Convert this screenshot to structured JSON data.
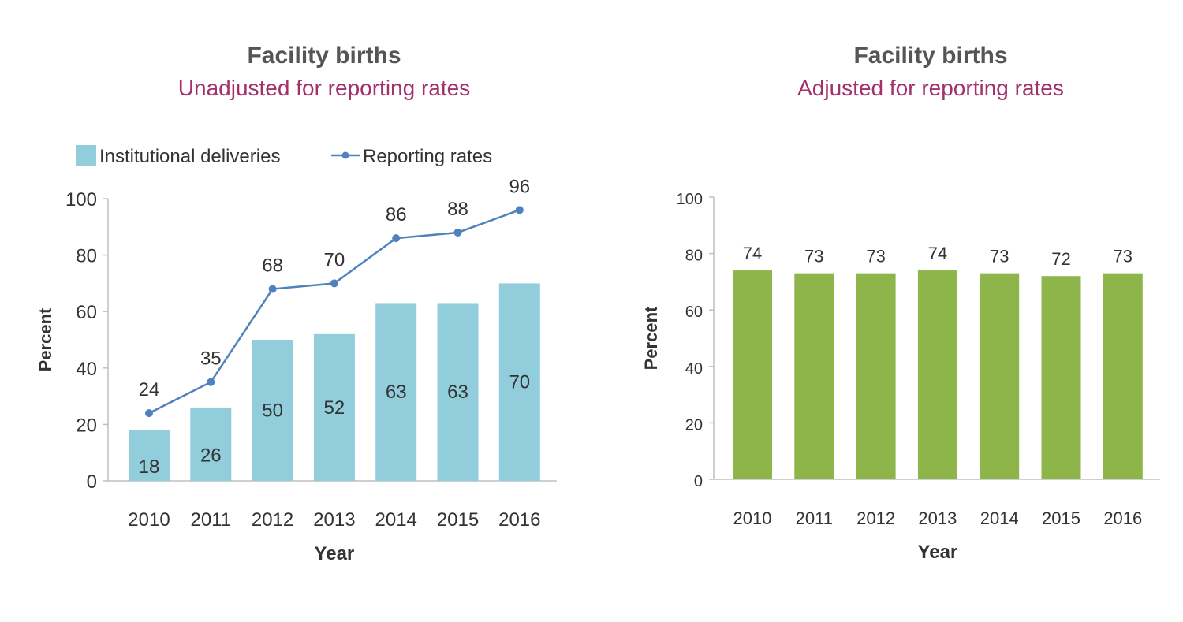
{
  "colors": {
    "subtitle": "#a3306b",
    "bars_left": "#92cddc",
    "line": "#4f81bd",
    "bars_right": "#8db54a",
    "text": "#333333",
    "axis": "#bfbfbf"
  },
  "chart_data": [
    {
      "type": "bar+line",
      "title": "Facility births",
      "subtitle": "Unadjusted for reporting rates",
      "xlabel": "Year",
      "ylabel": "Percent",
      "ylim": [
        0,
        100
      ],
      "yticks": [
        "0",
        "20",
        "40",
        "60",
        "80",
        "100"
      ],
      "categories": [
        "2010",
        "2011",
        "2012",
        "2013",
        "2014",
        "2015",
        "2016"
      ],
      "legend_position": "top",
      "series": [
        {
          "name": "Institutional deliveries",
          "kind": "bar",
          "values": [
            18,
            26,
            50,
            52,
            63,
            63,
            70
          ]
        },
        {
          "name": "Reporting rates",
          "kind": "line",
          "values": [
            24,
            35,
            68,
            70,
            86,
            88,
            96
          ]
        }
      ]
    },
    {
      "type": "bar",
      "title": "Facility births",
      "subtitle": "Adjusted for reporting rates",
      "xlabel": "Year",
      "ylabel": "Percent",
      "ylim": [
        0,
        100
      ],
      "yticks": [
        "0",
        "20",
        "40",
        "60",
        "80",
        "100"
      ],
      "categories": [
        "2010",
        "2011",
        "2012",
        "2013",
        "2014",
        "2015",
        "2016"
      ],
      "values": [
        74,
        73,
        73,
        74,
        73,
        72,
        73
      ]
    }
  ]
}
